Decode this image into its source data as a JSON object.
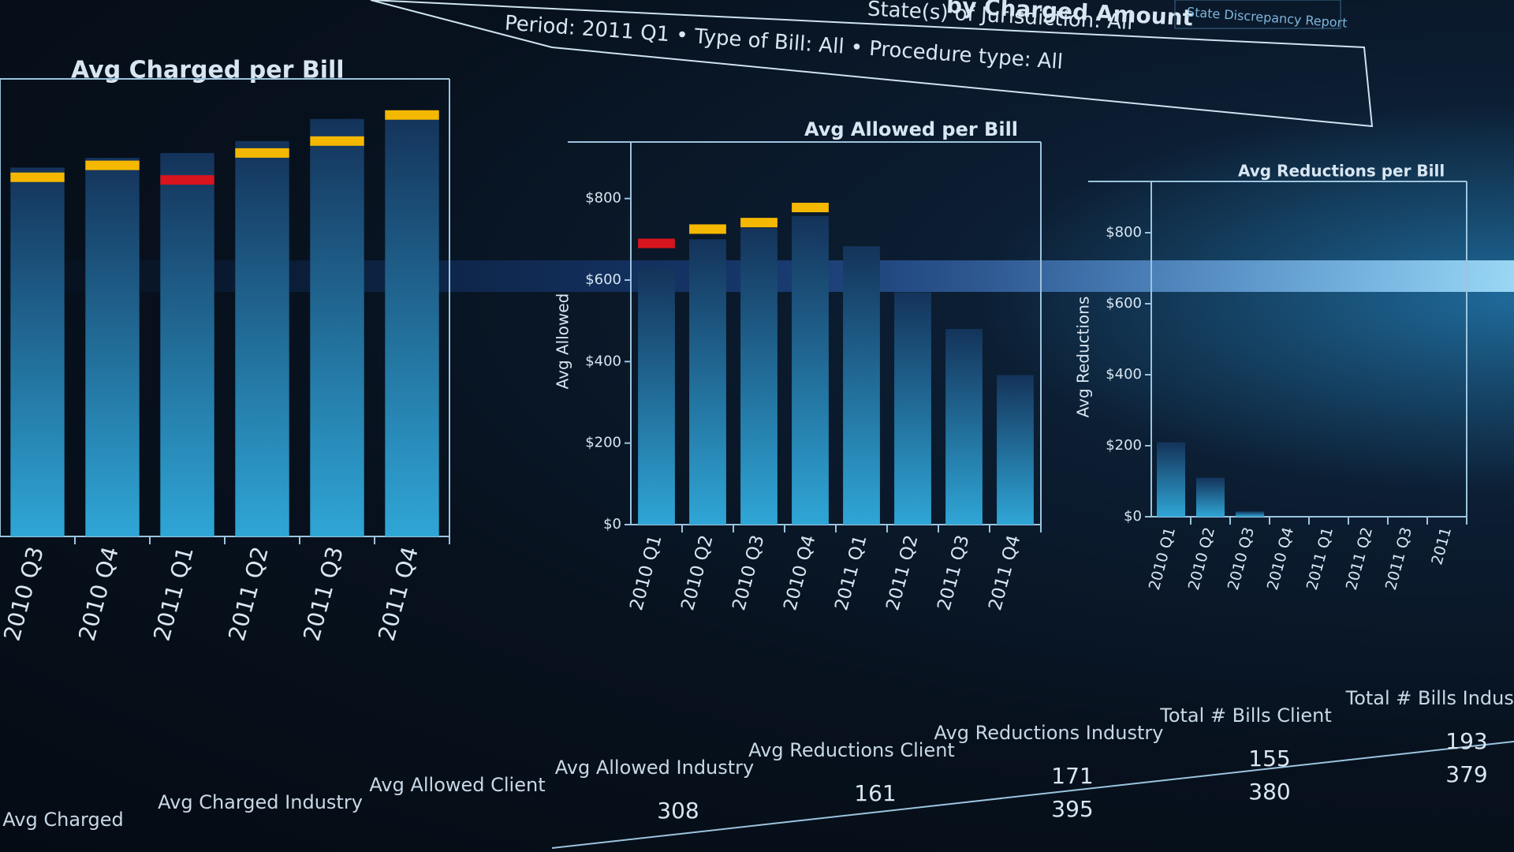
{
  "header": {
    "title": "by Charged Amount",
    "jurisdiction": "State(s) of Jurisdiction: All",
    "filters": "Period: 2011 Q1 • Type of Bill: All • Procedure type: All",
    "tab": "State Discrepancy Report"
  },
  "chart_data": [
    {
      "type": "bar",
      "title": "Avg Charged per Bill",
      "color": "#2a8fc8",
      "categories": [
        "2010 Q3",
        "2010 Q4",
        "2011 Q1",
        "2011 Q2",
        "2011 Q3",
        "2011 Q4"
      ],
      "values": [
        835,
        857,
        868,
        895,
        945,
        960
      ],
      "marker_values": [
        813,
        840,
        807,
        868,
        895,
        954
      ],
      "marker_colors": [
        "#f5b800",
        "#f5b800",
        "#d8141e",
        "#f5b800",
        "#f5b800",
        "#f5b800"
      ],
      "ylim": [
        0,
        1000
      ]
    },
    {
      "type": "bar",
      "title": "Avg Allowed per Bill",
      "y_label": "Avg Allowed",
      "color": "#2a8fc8",
      "categories": [
        "2010 Q1",
        "2010 Q2",
        "2010 Q3",
        "2010 Q4",
        "2011 Q1",
        "2011 Q2",
        "2011 Q3",
        "2011 Q4"
      ],
      "values": [
        631,
        700,
        728,
        757,
        683,
        570,
        480,
        367
      ],
      "marker_values": [
        690,
        725,
        741,
        778,
        null,
        null,
        null,
        null
      ],
      "marker_colors": [
        "#d8141e",
        "#f5b800",
        "#f5b800",
        "#f5b800",
        null,
        null,
        null,
        null
      ],
      "ylim": [
        0,
        900
      ],
      "yticks": [
        {
          "value": 0,
          "label": "$0"
        },
        {
          "value": 200,
          "label": "$200"
        },
        {
          "value": 400,
          "label": "$400"
        },
        {
          "value": 600,
          "label": "$600"
        },
        {
          "value": 800,
          "label": "$800"
        }
      ]
    },
    {
      "type": "bar",
      "title": "Avg Reductions per Bill",
      "y_label": "Avg Reductions",
      "color": "#2a8fc8",
      "categories": [
        "2010 Q1",
        "2010 Q2",
        "2010 Q3",
        "2010 Q4",
        "2011 Q1",
        "2011 Q2",
        "2011 Q3",
        "2011"
      ],
      "values": [
        210,
        110,
        15,
        0,
        0,
        0,
        0,
        0
      ],
      "ylim": [
        0,
        900
      ],
      "yticks": [
        {
          "value": 0,
          "label": "$0"
        },
        {
          "value": 200,
          "label": "$200"
        },
        {
          "value": 400,
          "label": "$400"
        },
        {
          "value": 600,
          "label": "$600"
        },
        {
          "value": 800,
          "label": "$800"
        }
      ]
    }
  ],
  "table": {
    "columns": [
      {
        "header": "Avg Charged",
        "values": []
      },
      {
        "header": "Avg Charged Industry",
        "values": []
      },
      {
        "header": "Avg Allowed Client",
        "values": []
      },
      {
        "header": "Avg Allowed Industry",
        "values": [
          "308"
        ]
      },
      {
        "header": "Avg Reductions Client",
        "values": [
          "161"
        ]
      },
      {
        "header": "Avg Reductions Industry",
        "values": [
          "171",
          "395"
        ]
      },
      {
        "header": "Total # Bills Client",
        "values": [
          "155",
          "380"
        ]
      },
      {
        "header": "Total # Bills Industry",
        "values": [
          "193",
          "379"
        ]
      }
    ]
  }
}
